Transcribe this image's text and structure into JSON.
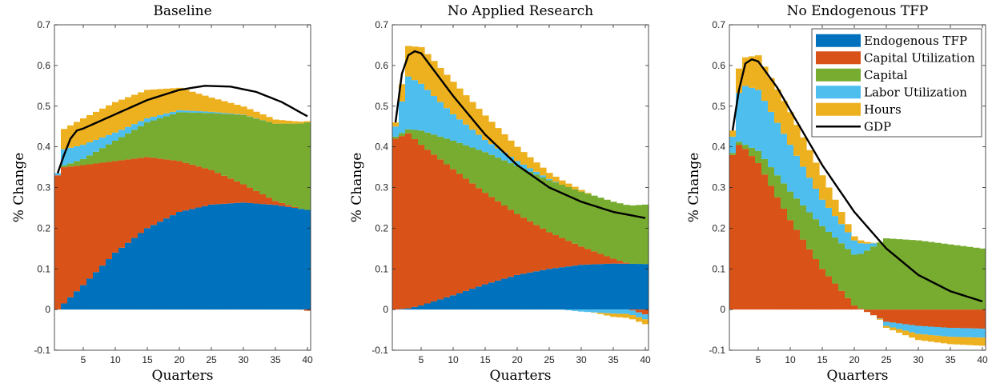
{
  "chart_data": [
    {
      "type": "area",
      "title": "Baseline",
      "xlabel": "Quarters",
      "ylabel": "% Change",
      "xlim": [
        1,
        40
      ],
      "ylim": [
        -0.1,
        0.7
      ],
      "xticks": [
        5,
        10,
        15,
        20,
        25,
        30,
        35,
        40
      ],
      "yticks": [
        -0.1,
        0,
        0.1,
        0.2,
        0.3,
        0.4,
        0.5,
        0.6,
        0.7
      ],
      "ytick_labels": [
        "-0.1",
        "0",
        "0.1",
        "0.2",
        "0.3",
        "0.4",
        "0.5",
        "0.6",
        "0.7"
      ],
      "grid": false,
      "stacked": true,
      "series": [
        {
          "name": "Endogenous TFP",
          "color": "#0072BD",
          "points": [
            [
              1,
              0.0
            ],
            [
              2,
              0.015
            ],
            [
              5,
              0.06
            ],
            [
              10,
              0.14
            ],
            [
              15,
              0.2
            ],
            [
              20,
              0.24
            ],
            [
              25,
              0.258
            ],
            [
              30,
              0.263
            ],
            [
              35,
              0.257
            ],
            [
              40,
              0.245
            ]
          ]
        },
        {
          "name": "Capital Utilization",
          "color": "#D95319",
          "points": [
            [
              1,
              0.33
            ],
            [
              2,
              0.335
            ],
            [
              5,
              0.295
            ],
            [
              10,
              0.225
            ],
            [
              15,
              0.175
            ],
            [
              20,
              0.125
            ],
            [
              25,
              0.085
            ],
            [
              30,
              0.045
            ],
            [
              35,
              0.01
            ],
            [
              40,
              -0.003
            ]
          ]
        },
        {
          "name": "Capital",
          "color": "#77AC30",
          "points": [
            [
              1,
              0.0
            ],
            [
              2,
              0.004
            ],
            [
              5,
              0.015
            ],
            [
              10,
              0.05
            ],
            [
              15,
              0.085
            ],
            [
              20,
              0.12
            ],
            [
              25,
              0.14
            ],
            [
              30,
              0.17
            ],
            [
              35,
              0.19
            ],
            [
              40,
              0.215
            ]
          ]
        },
        {
          "name": "Labor Utilization",
          "color": "#4DBEEE",
          "points": [
            [
              1,
              0.005
            ],
            [
              2,
              0.04
            ],
            [
              5,
              0.035
            ],
            [
              10,
              0.02
            ],
            [
              15,
              0.01
            ],
            [
              20,
              0.005
            ],
            [
              25,
              0.003
            ],
            [
              30,
              0.001
            ],
            [
              35,
              0.0
            ],
            [
              40,
              0.0
            ]
          ]
        },
        {
          "name": "Hours",
          "color": "#EDB120",
          "points": [
            [
              1,
              0.0
            ],
            [
              2,
              0.05
            ],
            [
              5,
              0.065
            ],
            [
              10,
              0.075
            ],
            [
              15,
              0.07
            ],
            [
              20,
              0.055
            ],
            [
              25,
              0.035
            ],
            [
              30,
              0.02
            ],
            [
              35,
              0.01
            ],
            [
              40,
              0.003
            ]
          ]
        }
      ],
      "line": {
        "name": "GDP",
        "color": "#000000",
        "points": [
          [
            1,
            0.335
          ],
          [
            2,
            0.38
          ],
          [
            3,
            0.42
          ],
          [
            4,
            0.44
          ],
          [
            5,
            0.445
          ],
          [
            10,
            0.48
          ],
          [
            15,
            0.515
          ],
          [
            20,
            0.54
          ],
          [
            24,
            0.55
          ],
          [
            28,
            0.548
          ],
          [
            32,
            0.535
          ],
          [
            36,
            0.51
          ],
          [
            40,
            0.475
          ]
        ]
      }
    },
    {
      "type": "area",
      "title": "No Applied Research",
      "xlabel": "Quarters",
      "ylabel": "% Change",
      "xlim": [
        1,
        40
      ],
      "ylim": [
        -0.1,
        0.7
      ],
      "xticks": [
        5,
        10,
        15,
        20,
        25,
        30,
        35,
        40
      ],
      "yticks": [
        -0.1,
        0,
        0.1,
        0.2,
        0.3,
        0.4,
        0.5,
        0.6,
        0.7
      ],
      "ytick_labels": [
        "-0.1",
        "0",
        "0.1",
        "0.2",
        "0.3",
        "0.4",
        "0.5",
        "0.6",
        "0.7"
      ],
      "grid": false,
      "stacked": true,
      "series": [
        {
          "name": "Endogenous TFP",
          "color": "#0072BD",
          "points": [
            [
              1,
              0.0
            ],
            [
              3,
              0.003
            ],
            [
              5,
              0.01
            ],
            [
              10,
              0.035
            ],
            [
              15,
              0.062
            ],
            [
              20,
              0.085
            ],
            [
              25,
              0.1
            ],
            [
              30,
              0.11
            ],
            [
              35,
              0.113
            ],
            [
              40,
              0.112
            ]
          ]
        },
        {
          "name": "Capital Utilization",
          "color": "#D95319",
          "points": [
            [
              1,
              0.42
            ],
            [
              3,
              0.43
            ],
            [
              5,
              0.395
            ],
            [
              10,
              0.31
            ],
            [
              15,
              0.225
            ],
            [
              20,
              0.15
            ],
            [
              25,
              0.09
            ],
            [
              30,
              0.045
            ],
            [
              35,
              0.012
            ],
            [
              40,
              -0.012
            ]
          ]
        },
        {
          "name": "Capital",
          "color": "#77AC30",
          "points": [
            [
              1,
              0.005
            ],
            [
              3,
              0.01
            ],
            [
              5,
              0.035
            ],
            [
              10,
              0.07
            ],
            [
              15,
              0.1
            ],
            [
              20,
              0.118
            ],
            [
              25,
              0.128
            ],
            [
              30,
              0.135
            ],
            [
              35,
              0.14
            ],
            [
              40,
              0.146
            ]
          ]
        },
        {
          "name": "Labor Utilization",
          "color": "#4DBEEE",
          "points": [
            [
              1,
              0.025
            ],
            [
              3,
              0.13
            ],
            [
              5,
              0.115
            ],
            [
              10,
              0.065
            ],
            [
              15,
              0.03
            ],
            [
              20,
              0.012
            ],
            [
              25,
              0.003
            ],
            [
              30,
              -0.005
            ],
            [
              35,
              -0.01
            ],
            [
              40,
              -0.012
            ]
          ]
        },
        {
          "name": "Hours",
          "color": "#EDB120",
          "points": [
            [
              1,
              0.01
            ],
            [
              3,
              0.075
            ],
            [
              5,
              0.09
            ],
            [
              10,
              0.08
            ],
            [
              15,
              0.06
            ],
            [
              20,
              0.035
            ],
            [
              25,
              0.015
            ],
            [
              30,
              0.004
            ],
            [
              35,
              -0.008
            ],
            [
              40,
              -0.012
            ]
          ]
        }
      ],
      "line": {
        "name": "GDP",
        "color": "#000000",
        "points": [
          [
            1,
            0.46
          ],
          [
            2,
            0.58
          ],
          [
            3,
            0.625
          ],
          [
            4,
            0.635
          ],
          [
            5,
            0.63
          ],
          [
            10,
            0.525
          ],
          [
            15,
            0.43
          ],
          [
            20,
            0.355
          ],
          [
            25,
            0.3
          ],
          [
            30,
            0.265
          ],
          [
            35,
            0.24
          ],
          [
            40,
            0.225
          ]
        ]
      }
    },
    {
      "type": "area",
      "title": "No Endogenous TFP",
      "xlabel": "Quarters",
      "ylabel": "% Change",
      "xlim": [
        1,
        40
      ],
      "ylim": [
        -0.1,
        0.7
      ],
      "xticks": [
        5,
        10,
        15,
        20,
        25,
        30,
        35,
        40
      ],
      "yticks": [
        -0.1,
        0,
        0.1,
        0.2,
        0.3,
        0.4,
        0.5,
        0.6,
        0.7
      ],
      "ytick_labels": [
        "-0.1",
        "0",
        "0.1",
        "0.2",
        "0.3",
        "0.4",
        "0.5",
        "0.6",
        "0.7"
      ],
      "grid": false,
      "stacked": true,
      "legend": {
        "location": "top-right",
        "entries": [
          "Endogenous TFP",
          "Capital Utilization",
          "Capital",
          "Labor Utilization",
          "Hours",
          "GDP"
        ]
      },
      "series": [
        {
          "name": "Endogenous TFP",
          "color": "#0072BD",
          "points": [
            [
              1,
              0.0
            ],
            [
              40,
              0.0
            ]
          ]
        },
        {
          "name": "Capital Utilization",
          "color": "#D95319",
          "points": [
            [
              1,
              0.38
            ],
            [
              2,
              0.405
            ],
            [
              3,
              0.395
            ],
            [
              5,
              0.36
            ],
            [
              10,
              0.22
            ],
            [
              15,
              0.1
            ],
            [
              20,
              0.01
            ],
            [
              25,
              -0.03
            ],
            [
              30,
              -0.04
            ],
            [
              35,
              -0.045
            ],
            [
              40,
              -0.047
            ]
          ]
        },
        {
          "name": "Capital",
          "color": "#77AC30",
          "points": [
            [
              1,
              0.005
            ],
            [
              3,
              0.01
            ],
            [
              5,
              0.03
            ],
            [
              10,
              0.07
            ],
            [
              15,
              0.105
            ],
            [
              20,
              0.125
            ],
            [
              25,
              0.175
            ],
            [
              30,
              0.17
            ],
            [
              35,
              0.16
            ],
            [
              40,
              0.15
            ]
          ]
        },
        {
          "name": "Labor Utilization",
          "color": "#4DBEEE",
          "points": [
            [
              1,
              0.04
            ],
            [
              2,
              0.12
            ],
            [
              3,
              0.145
            ],
            [
              5,
              0.15
            ],
            [
              10,
              0.115
            ],
            [
              15,
              0.065
            ],
            [
              20,
              0.035
            ],
            [
              25,
              -0.01
            ],
            [
              30,
              -0.02
            ],
            [
              35,
              -0.022
            ],
            [
              40,
              -0.022
            ]
          ]
        },
        {
          "name": "Hours",
          "color": "#EDB120",
          "points": [
            [
              1,
              0.015
            ],
            [
              2,
              0.06
            ],
            [
              3,
              0.07
            ],
            [
              5,
              0.085
            ],
            [
              10,
              0.08
            ],
            [
              15,
              0.06
            ],
            [
              20,
              0.01
            ],
            [
              25,
              -0.005
            ],
            [
              30,
              -0.015
            ],
            [
              35,
              -0.018
            ],
            [
              40,
              -0.02
            ]
          ]
        }
      ],
      "line": {
        "name": "GDP",
        "color": "#000000",
        "points": [
          [
            1,
            0.44
          ],
          [
            2,
            0.54
          ],
          [
            3,
            0.605
          ],
          [
            4,
            0.615
          ],
          [
            5,
            0.61
          ],
          [
            8,
            0.545
          ],
          [
            10,
            0.49
          ],
          [
            15,
            0.355
          ],
          [
            20,
            0.24
          ],
          [
            25,
            0.15
          ],
          [
            30,
            0.085
          ],
          [
            35,
            0.045
          ],
          [
            40,
            0.02
          ]
        ]
      }
    }
  ]
}
